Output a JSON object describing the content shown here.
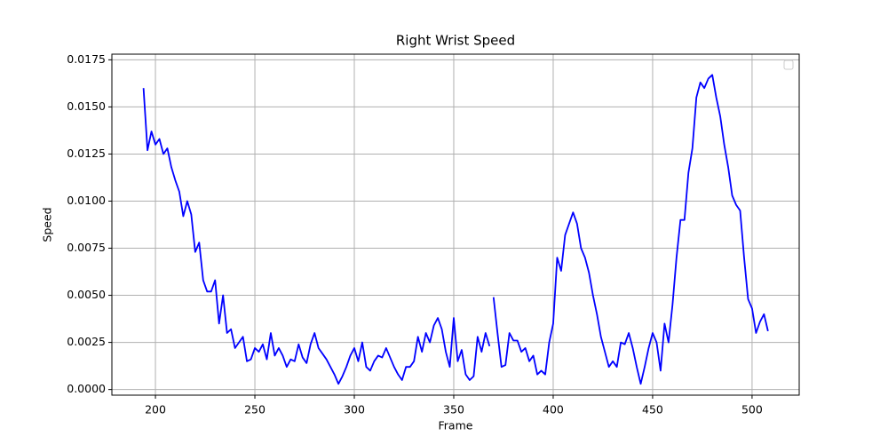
{
  "chart_data": {
    "type": "line",
    "title": "Right Wrist Speed",
    "x_label": "Frame",
    "y_label": "Speed",
    "color": "#0000ff",
    "grid": true,
    "legend": "upper right",
    "xlim": [
      178.1,
      523.7
    ],
    "ylim": [
      -0.0003,
      0.0178
    ],
    "xticks": [
      200,
      250,
      300,
      350,
      400,
      450,
      500
    ],
    "yticks": [
      {
        "value": 0,
        "label": "0.0000"
      },
      {
        "value": 0.0025,
        "label": "0.0025"
      },
      {
        "value": 0.005,
        "label": "0.0050"
      },
      {
        "value": 0.0075,
        "label": "0.0075"
      },
      {
        "value": 0.01,
        "label": "0.0100"
      },
      {
        "value": 0.0125,
        "label": "0.0125"
      },
      {
        "value": 0.015,
        "label": "0.0150"
      },
      {
        "value": 0.0175,
        "label": "0.0175"
      }
    ],
    "x": [
      194,
      196,
      198,
      200,
      202,
      204,
      206,
      208,
      210,
      212,
      214,
      216,
      218,
      220,
      222,
      224,
      226,
      228,
      230,
      232,
      234,
      236,
      238,
      240,
      242,
      244,
      246,
      248,
      250,
      252,
      254,
      256,
      258,
      260,
      262,
      264,
      266,
      268,
      270,
      272,
      274,
      276,
      278,
      280,
      282,
      284,
      286,
      288,
      290,
      292,
      294,
      296,
      298,
      300,
      302,
      304,
      306,
      308,
      310,
      312,
      314,
      316,
      318,
      320,
      322,
      324,
      326,
      328,
      330,
      332,
      334,
      336,
      338,
      340,
      342,
      344,
      346,
      348,
      350,
      352,
      354,
      356,
      358,
      360,
      362,
      364,
      366,
      368,
      369,
      370,
      372,
      374,
      376,
      378,
      380,
      382,
      384,
      386,
      388,
      390,
      392,
      394,
      396,
      398,
      400,
      402,
      404,
      406,
      408,
      410,
      412,
      414,
      416,
      418,
      420,
      422,
      424,
      426,
      428,
      430,
      432,
      434,
      436,
      438,
      440,
      442,
      444,
      446,
      448,
      450,
      452,
      454,
      456,
      458,
      460,
      462,
      464,
      466,
      468,
      470,
      472,
      474,
      476,
      478,
      480,
      482,
      484,
      486,
      488,
      490,
      492,
      494,
      496,
      498,
      500,
      502,
      504,
      506,
      508
    ],
    "values": [
      0.016,
      0.0127,
      0.0137,
      0.013,
      0.0133,
      0.0125,
      0.0128,
      0.0118,
      0.0111,
      0.0105,
      0.0092,
      0.01,
      0.0093,
      0.0073,
      0.0078,
      0.0058,
      0.0052,
      0.0052,
      0.0058,
      0.0035,
      0.005,
      0.003,
      0.0032,
      0.0022,
      0.0025,
      0.0028,
      0.0015,
      0.0016,
      0.0022,
      0.002,
      0.0024,
      0.0016,
      0.003,
      0.0018,
      0.0022,
      0.0018,
      0.0012,
      0.0016,
      0.0015,
      0.0024,
      0.0017,
      0.0014,
      0.0024,
      0.003,
      0.0022,
      0.0019,
      0.0016,
      0.0012,
      0.0008,
      0.0003,
      0.0007,
      0.0012,
      0.0018,
      0.0022,
      0.0015,
      0.0025,
      0.0012,
      0.001,
      0.0015,
      0.0018,
      0.0017,
      0.0022,
      0.0017,
      0.0012,
      0.0008,
      0.0005,
      0.0012,
      0.0012,
      0.0015,
      0.0028,
      0.002,
      0.003,
      0.0025,
      0.0034,
      0.0038,
      0.0032,
      0.002,
      0.0012,
      0.0038,
      0.0015,
      0.0021,
      0.0008,
      0.0005,
      0.0007,
      0.0028,
      0.002,
      0.003,
      0.0023,
      null,
      0.0049,
      0.003,
      0.0012,
      0.0013,
      0.003,
      0.0026,
      0.0026,
      0.002,
      0.0022,
      0.0015,
      0.0018,
      0.0008,
      0.001,
      0.0008,
      0.0025,
      0.0035,
      0.007,
      0.0063,
      0.0082,
      0.0088,
      0.0094,
      0.0088,
      0.0075,
      0.007,
      0.0062,
      0.005,
      0.004,
      0.0028,
      0.002,
      0.0012,
      0.0015,
      0.0012,
      0.0025,
      0.0024,
      0.003,
      0.0022,
      0.0012,
      0.0003,
      0.0012,
      0.0022,
      0.003,
      0.0025,
      0.001,
      0.0035,
      0.0025,
      0.0045,
      0.007,
      0.009,
      0.009,
      0.0115,
      0.0128,
      0.0155,
      0.0163,
      0.016,
      0.0165,
      0.0167,
      0.0155,
      0.0145,
      0.013,
      0.0118,
      0.0103,
      0.0098,
      0.0095,
      0.007,
      0.0048,
      0.0043,
      0.003,
      0.0036,
      0.004,
      0.0031
    ]
  }
}
